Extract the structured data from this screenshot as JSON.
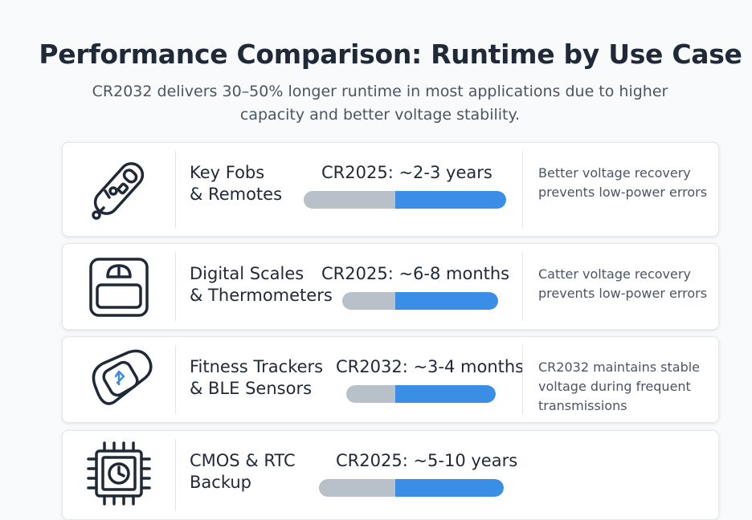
{
  "title": "Performance Comparison: Runtime by Use Case",
  "subtitle": "CR2032 delivers 30–50% longer runtime in most applications due to higher capacity and better voltage stability.",
  "colors": {
    "bar_gray": "#b8c0ca",
    "bar_blue": "#3b8ee6"
  },
  "rows": [
    {
      "icon": "key-fob-icon",
      "label_line1": "Key Fobs",
      "label_line2": "& Remotes",
      "runtime": "CR2025: ~2-3 years",
      "note": "Better voltage recovery prevents low-power errors"
    },
    {
      "icon": "scale-icon",
      "label_line1": "Digital Scales",
      "label_line2": "& Thermometers",
      "runtime": "CR2025: ~6-8 months",
      "note": "Catter voltage recovery prevents low-power errors"
    },
    {
      "icon": "fitness-tracker-icon",
      "label_line1": "Fitness Trackers",
      "label_line2": "& BLE Sensors",
      "runtime": "CR2032: ~3-4 months",
      "note": "CR2032 maintains stable voltage during frequent transmissions"
    },
    {
      "icon": "chip-clock-icon",
      "label_line1": "CMOS & RTC",
      "label_line2": "Backup",
      "runtime": "CR2025: ~5-10 years",
      "note": ""
    }
  ]
}
